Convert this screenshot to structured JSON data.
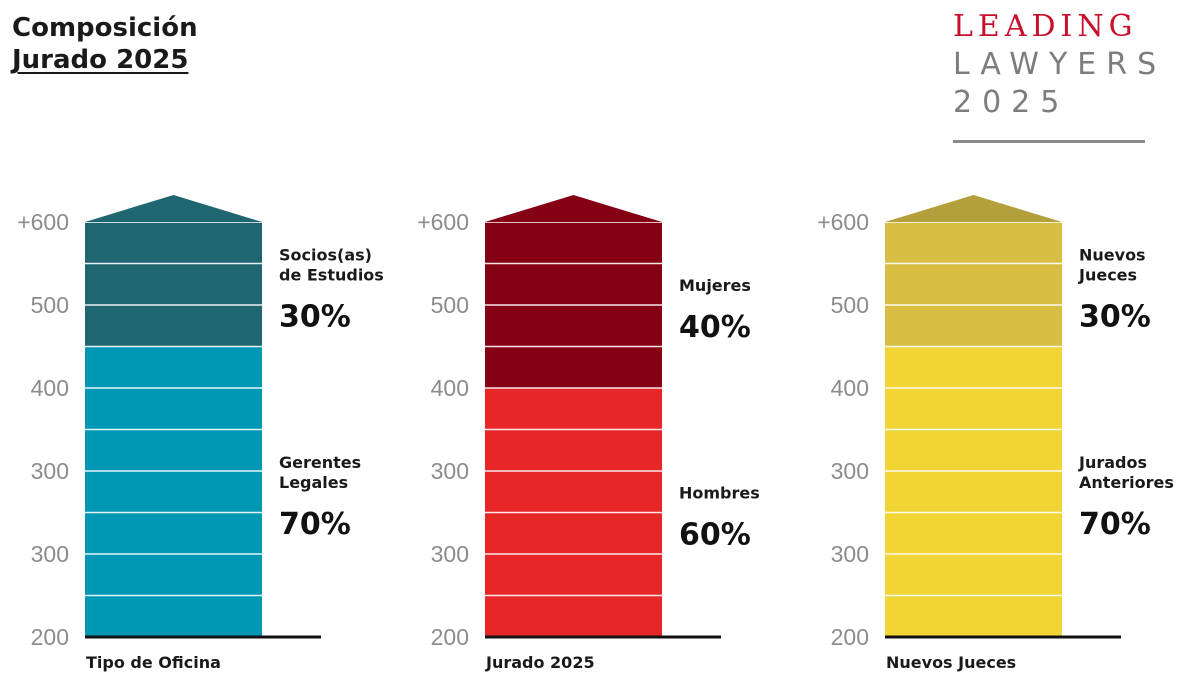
{
  "header": {
    "title_line1": "Composición",
    "title_line2": "Jurado 2025"
  },
  "logo": {
    "line1": "LEADING",
    "line2": "LAWYERS",
    "line3": "2025"
  },
  "chart_data": [
    {
      "type": "bar",
      "xlabel": "Tipo de Oficina",
      "y_tick_labels": [
        "200",
        "300",
        "300",
        "400",
        "500",
        "+600"
      ],
      "segments": [
        {
          "label": "Gerentes Legales",
          "label_lines": [
            "Gerentes",
            "Legales"
          ],
          "value": "70%",
          "percent": 70,
          "color": "#0097b4"
        },
        {
          "label": "Socios(as) de Estudios",
          "label_lines": [
            "Socios(as)",
            "de Estudios"
          ],
          "value": "30%",
          "percent": 30,
          "color": "#1f6670"
        }
      ],
      "arrow_color": "#1f6670"
    },
    {
      "type": "bar",
      "xlabel": "Jurado 2025",
      "y_tick_labels": [
        "200",
        "300",
        "300",
        "400",
        "500",
        "+600"
      ],
      "segments": [
        {
          "label": "Hombres",
          "label_lines": [
            "Hombres"
          ],
          "value": "60%",
          "percent": 60,
          "color": "#e62627"
        },
        {
          "label": "Mujeres",
          "label_lines": [
            "Mujeres"
          ],
          "value": "40%",
          "percent": 40,
          "color": "#850014"
        }
      ],
      "arrow_color": "#850014"
    },
    {
      "type": "bar",
      "xlabel": "Nuevos Jueces",
      "y_tick_labels": [
        "200",
        "300",
        "300",
        "400",
        "500",
        "+600"
      ],
      "segments": [
        {
          "label": "Jurados Anteriores",
          "label_lines": [
            "Jurados",
            "Anteriores"
          ],
          "value": "70%",
          "percent": 70,
          "color": "#f0d535"
        },
        {
          "label": "Nuevos Jueces",
          "label_lines": [
            "Nuevos",
            "Jueces"
          ],
          "value": "30%",
          "percent": 30,
          "color": "#d8bf44"
        }
      ],
      "arrow_color": "#b3a03a"
    }
  ]
}
